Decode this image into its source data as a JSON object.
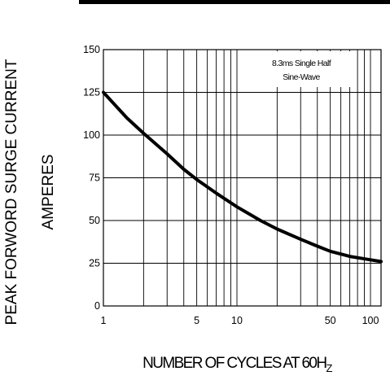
{
  "chart_data": {
    "type": "line",
    "ylabel_line1": "PEAK FORWORD SURGE CURRENT",
    "ylabel_line2": "AMPERES",
    "xlabel_main": "NUMBER OF CYCLES AT 60H",
    "xlabel_sub": "Z",
    "annotation_line1": "8.3ms Single Half",
    "annotation_line2": "Sine-Wave",
    "x_scale": "log",
    "xlim": [
      1,
      120
    ],
    "ylim": [
      0,
      150
    ],
    "grid": true,
    "x_ticks": [
      {
        "value": 1,
        "label": "1"
      },
      {
        "value": 5,
        "label": "5"
      },
      {
        "value": 10,
        "label": "10"
      },
      {
        "value": 50,
        "label": "50"
      },
      {
        "value": 100,
        "label": "100"
      }
    ],
    "y_ticks": [
      {
        "value": 0,
        "label": "0"
      },
      {
        "value": 25,
        "label": "25"
      },
      {
        "value": 50,
        "label": "50"
      },
      {
        "value": 75,
        "label": "75"
      },
      {
        "value": 100,
        "label": "100"
      },
      {
        "value": 125,
        "label": "125"
      },
      {
        "value": 150,
        "label": "150"
      }
    ],
    "series": [
      {
        "x": [
          1,
          1.5,
          2,
          3,
          4,
          5,
          7,
          10,
          15,
          20,
          30,
          40,
          50,
          70,
          100,
          120
        ],
        "y": [
          125,
          110,
          101,
          89,
          80,
          74,
          66,
          58,
          50,
          45,
          39,
          35,
          32,
          29,
          27,
          26
        ],
        "color": "#000000"
      }
    ]
  }
}
